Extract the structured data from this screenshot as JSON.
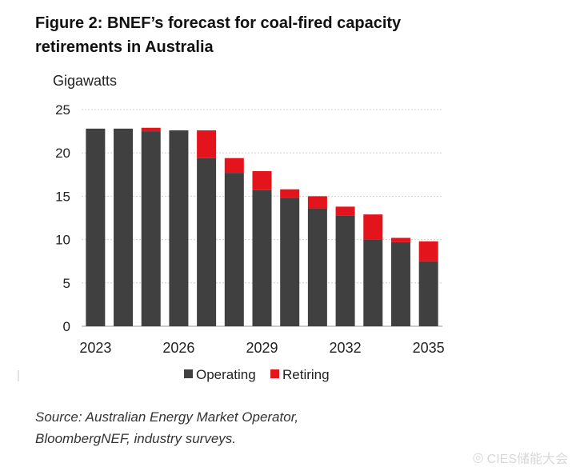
{
  "figure": {
    "title_line1": "Figure 2: BNEF’s forecast for coal-fired capacity",
    "title_line2": "retirements in Australia",
    "source_line1": "Source: Australian Energy Market Operator,",
    "source_line2": "BloombergNEF, industry surveys."
  },
  "watermark": {
    "text": "CIES储能大会",
    "icon": "weibo-icon"
  },
  "chart_data": {
    "type": "bar",
    "stacked": true,
    "title": "",
    "ylabel": "Gigawatts",
    "xlabel": "",
    "ylim": [
      0,
      25
    ],
    "yticks": [
      0,
      5,
      10,
      15,
      20,
      25
    ],
    "grid": true,
    "legend_position": "bottom",
    "categories": [
      "2023",
      "2024",
      "2025",
      "2026",
      "2027",
      "2028",
      "2029",
      "2030",
      "2031",
      "2032",
      "2033",
      "2034",
      "2035"
    ],
    "xtick_labels": [
      "2023",
      "2026",
      "2029",
      "2032",
      "2035"
    ],
    "series": [
      {
        "name": "Operating",
        "color": "#404040",
        "values": [
          22.8,
          22.8,
          22.5,
          22.6,
          19.4,
          17.7,
          15.7,
          14.8,
          13.6,
          12.8,
          10.0,
          9.7,
          7.5
        ]
      },
      {
        "name": "Retiring",
        "color": "#e3141b",
        "values": [
          0.0,
          0.0,
          0.4,
          0.0,
          3.2,
          1.7,
          2.2,
          1.0,
          1.4,
          1.0,
          2.9,
          0.5,
          2.3
        ]
      }
    ]
  }
}
